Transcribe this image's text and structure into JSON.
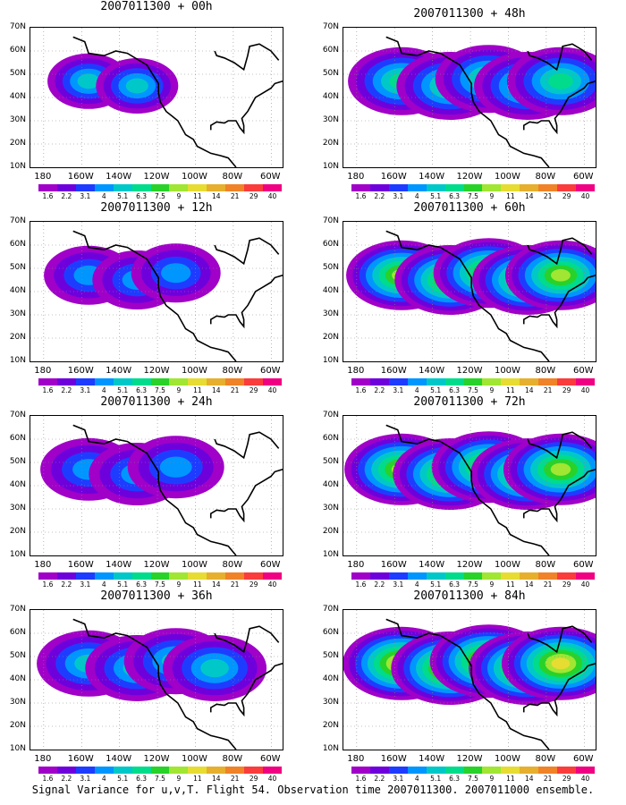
{
  "chart_data": {
    "type": "heatmap",
    "colorbar": {
      "levels": [
        "1.6",
        "2.2",
        "3.1",
        "4",
        "5.1",
        "6.3",
        "7.5",
        "9",
        "11",
        "14",
        "21",
        "29",
        "40"
      ],
      "colors": [
        "#a000c8",
        "#6e00dc",
        "#1e3cff",
        "#0096ff",
        "#00c8c8",
        "#00dc8c",
        "#28d228",
        "#a0e632",
        "#e6dc32",
        "#e6af2d",
        "#f08228",
        "#fa3c3c",
        "#f00082"
      ]
    },
    "x_ticks": [
      "180",
      "160W",
      "140W",
      "120W",
      "100W",
      "80W",
      "60W"
    ],
    "y_ticks": [
      "70N",
      "60N",
      "50N",
      "40N",
      "30N",
      "20N",
      "10N"
    ],
    "xlim": [
      -190,
      -60
    ],
    "ylim": [
      10,
      70
    ],
    "panels": [
      {
        "title": "2007011300 + 00h",
        "max_level": 4,
        "spread": 0.3
      },
      {
        "title": "2007011300 + 12h",
        "max_level": 3,
        "spread": 0.5
      },
      {
        "title": "2007011300 + 24h",
        "max_level": 3,
        "spread": 0.7
      },
      {
        "title": "2007011300 + 36h",
        "max_level": 4,
        "spread": 0.9
      },
      {
        "title": "2007011300 + 48h",
        "max_level": 5,
        "spread": 1.0
      },
      {
        "title": "2007011300 + 60h",
        "max_level": 7,
        "spread": 1.1
      },
      {
        "title": "2007011300 + 72h",
        "max_level": 7,
        "spread": 1.2
      },
      {
        "title": "2007011300 + 84h",
        "max_level": 8,
        "spread": 1.3
      }
    ]
  },
  "footer": "Signal Variance for u,v,T. Flight 54. Observation time 2007011300. 2007011000 ensemble."
}
